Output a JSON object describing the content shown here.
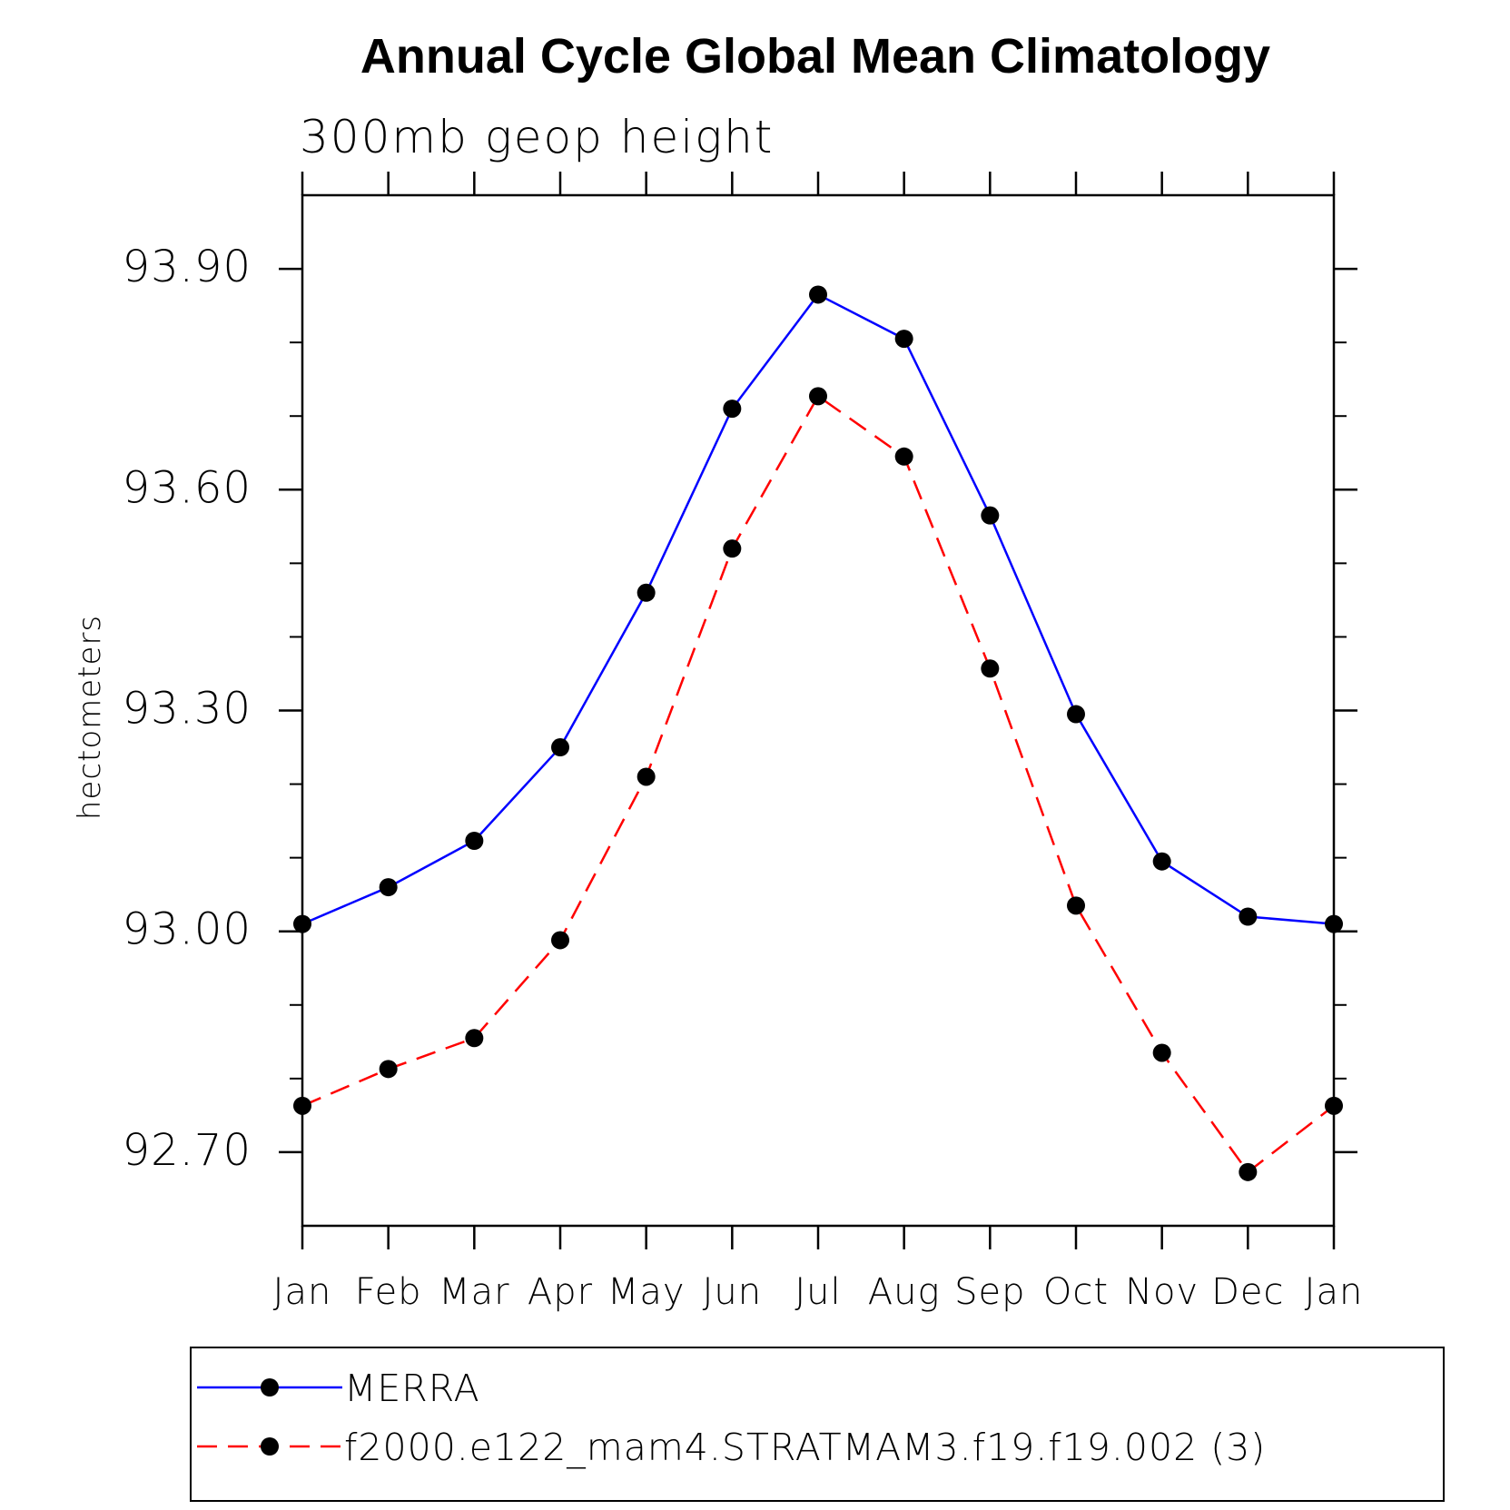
{
  "chart_data": {
    "type": "line",
    "title": "Annual Cycle Global Mean Climatology",
    "subtitle": "300mb geop height",
    "xlabel": "",
    "ylabel": "hectometers",
    "categories": [
      "Jan",
      "Feb",
      "Mar",
      "Apr",
      "May",
      "Jun",
      "Jul",
      "Aug",
      "Sep",
      "Oct",
      "Nov",
      "Dec",
      "Jan"
    ],
    "ylim": [
      92.6,
      94.0
    ],
    "yticks_major": [
      92.7,
      93.0,
      93.3,
      93.6,
      93.9
    ],
    "ytick_labels": [
      "92.70",
      "93.00",
      "93.30",
      "93.60",
      "93.90"
    ],
    "yminor_step": 0.1,
    "grid": false,
    "legend_position": "bottom",
    "series": [
      {
        "name": "MERRA",
        "color": "#0000ff",
        "dash": "solid",
        "marker": "filled-circle",
        "values": [
          93.01,
          93.06,
          93.123,
          93.25,
          93.46,
          93.71,
          93.865,
          93.805,
          93.565,
          93.295,
          93.095,
          93.02,
          93.01
        ]
      },
      {
        "name": "f2000.e122_mam4.STRATMAM3.f19.f19.002 (3)",
        "color": "#ff0000",
        "dash": "dashed",
        "marker": "filled-circle",
        "values": [
          92.763,
          92.813,
          92.855,
          92.988,
          93.21,
          93.52,
          93.727,
          93.645,
          93.357,
          93.035,
          92.835,
          92.673,
          92.763
        ]
      }
    ]
  }
}
